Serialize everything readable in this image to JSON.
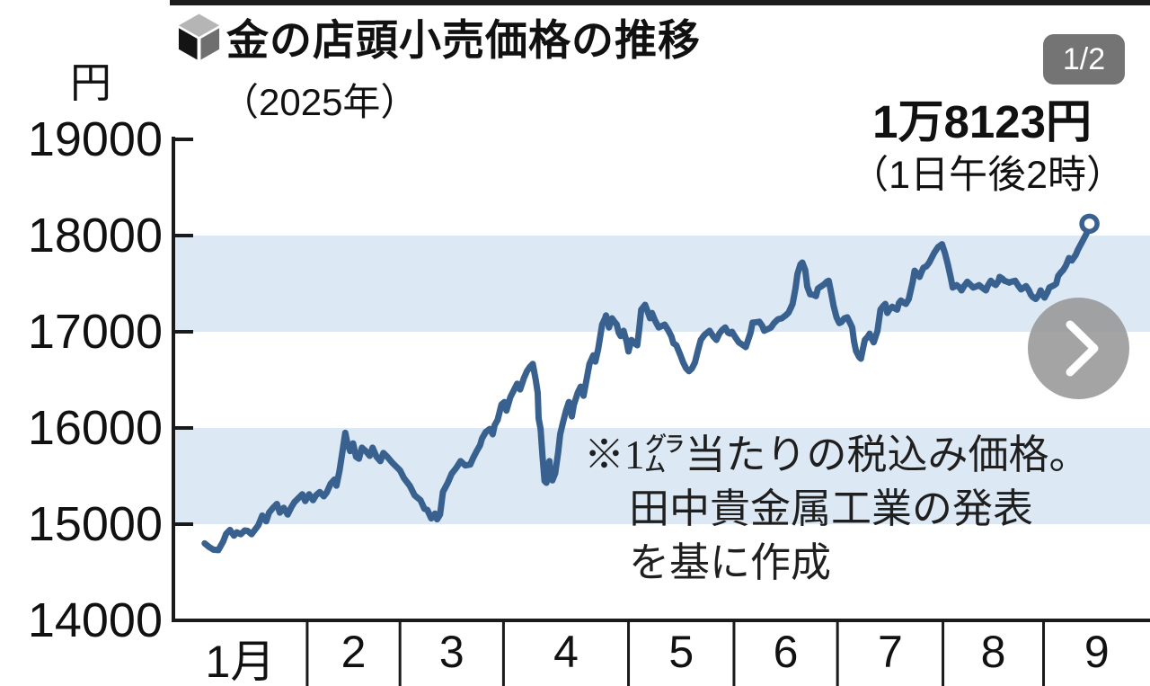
{
  "header": {
    "title": "金の店頭小売価格の推移",
    "subtitle": "（2025年）",
    "pager_badge": "1/2"
  },
  "price_callout": {
    "value": "1万8123円",
    "time": "（1日午後2時）"
  },
  "note": {
    "line1": "※1㌘当たりの税込み価格。",
    "line2": "田中貴金属工業の発表",
    "line3": "を基に作成"
  },
  "icons": {
    "bullet": "cube",
    "next": "chevron-right"
  },
  "colors": {
    "line": "#38618f",
    "band": "#dce8f4",
    "axis": "#1a1a1a",
    "badge_bg": "#616161",
    "button_bg": "#929292"
  },
  "chart_data": {
    "type": "line",
    "title": "金の店頭小売価格の推移（2025年）",
    "ylabel": "円",
    "unit_label": "円",
    "ylim": [
      14000,
      19000
    ],
    "yticks": [
      19000,
      18000,
      17000,
      16000,
      15000,
      14000
    ],
    "bands": [
      [
        17000,
        18000
      ],
      [
        15000,
        16000
      ]
    ],
    "grid": false,
    "x_months": [
      "1月",
      "2",
      "3",
      "4",
      "5",
      "6",
      "7",
      "8",
      "9"
    ],
    "month_boundaries_frac": [
      0,
      0.137,
      0.232,
      0.338,
      0.466,
      0.574,
      0.68,
      0.788,
      0.891,
      1.0
    ],
    "latest": {
      "price_yen": 18123,
      "label": "1万8123円",
      "time_label": "（1日午後2時）"
    },
    "series": [
      {
        "name": "金の店頭小売価格",
        "points": [
          [
            0.032,
            14800
          ],
          [
            0.037,
            14760
          ],
          [
            0.041,
            14735
          ],
          [
            0.046,
            14730
          ],
          [
            0.051,
            14820
          ],
          [
            0.054,
            14900
          ],
          [
            0.058,
            14940
          ],
          [
            0.062,
            14880
          ],
          [
            0.065,
            14915
          ],
          [
            0.069,
            14895
          ],
          [
            0.073,
            14935
          ],
          [
            0.076,
            14930
          ],
          [
            0.08,
            14895
          ],
          [
            0.084,
            14950
          ],
          [
            0.087,
            14990
          ],
          [
            0.091,
            15090
          ],
          [
            0.095,
            15030
          ],
          [
            0.098,
            15120
          ],
          [
            0.102,
            15170
          ],
          [
            0.106,
            15210
          ],
          [
            0.109,
            15120
          ],
          [
            0.113,
            15170
          ],
          [
            0.117,
            15100
          ],
          [
            0.121,
            15180
          ],
          [
            0.124,
            15230
          ],
          [
            0.128,
            15270
          ],
          [
            0.132,
            15310
          ],
          [
            0.135,
            15240
          ],
          [
            0.139,
            15310
          ],
          [
            0.143,
            15250
          ],
          [
            0.146,
            15300
          ],
          [
            0.15,
            15335
          ],
          [
            0.154,
            15290
          ],
          [
            0.157,
            15330
          ],
          [
            0.161,
            15420
          ],
          [
            0.165,
            15465
          ],
          [
            0.167,
            15400
          ],
          [
            0.17,
            15550
          ],
          [
            0.173,
            15750
          ],
          [
            0.176,
            15950
          ],
          [
            0.178,
            15850
          ],
          [
            0.181,
            15760
          ],
          [
            0.184,
            15840
          ],
          [
            0.187,
            15700
          ],
          [
            0.19,
            15680
          ],
          [
            0.193,
            15795
          ],
          [
            0.197,
            15760
          ],
          [
            0.201,
            15710
          ],
          [
            0.204,
            15795
          ],
          [
            0.208,
            15700
          ],
          [
            0.212,
            15655
          ],
          [
            0.215,
            15740
          ],
          [
            0.219,
            15700
          ],
          [
            0.224,
            15640
          ],
          [
            0.227,
            15610
          ],
          [
            0.232,
            15560
          ],
          [
            0.236,
            15480
          ],
          [
            0.242,
            15400
          ],
          [
            0.247,
            15300
          ],
          [
            0.253,
            15250
          ],
          [
            0.257,
            15160
          ],
          [
            0.26,
            15150
          ],
          [
            0.264,
            15060
          ],
          [
            0.268,
            15110
          ],
          [
            0.27,
            15050
          ],
          [
            0.273,
            15100
          ],
          [
            0.276,
            15335
          ],
          [
            0.281,
            15430
          ],
          [
            0.285,
            15525
          ],
          [
            0.29,
            15590
          ],
          [
            0.294,
            15655
          ],
          [
            0.299,
            15610
          ],
          [
            0.304,
            15620
          ],
          [
            0.307,
            15690
          ],
          [
            0.31,
            15750
          ],
          [
            0.314,
            15820
          ],
          [
            0.316,
            15890
          ],
          [
            0.32,
            15960
          ],
          [
            0.324,
            15990
          ],
          [
            0.327,
            15935
          ],
          [
            0.329,
            16030
          ],
          [
            0.332,
            16085
          ],
          [
            0.336,
            16245
          ],
          [
            0.339,
            16270
          ],
          [
            0.341,
            16180
          ],
          [
            0.345,
            16320
          ],
          [
            0.349,
            16400
          ],
          [
            0.352,
            16460
          ],
          [
            0.355,
            16400
          ],
          [
            0.359,
            16520
          ],
          [
            0.362,
            16590
          ],
          [
            0.365,
            16635
          ],
          [
            0.368,
            16665
          ],
          [
            0.371,
            16500
          ],
          [
            0.373,
            16365
          ],
          [
            0.374,
            16100
          ],
          [
            0.376,
            15990
          ],
          [
            0.378,
            15700
          ],
          [
            0.38,
            15450
          ],
          [
            0.382,
            15430
          ],
          [
            0.385,
            15655
          ],
          [
            0.386,
            15550
          ],
          [
            0.388,
            15455
          ],
          [
            0.391,
            15530
          ],
          [
            0.394,
            15750
          ],
          [
            0.396,
            15935
          ],
          [
            0.399,
            16060
          ],
          [
            0.402,
            16180
          ],
          [
            0.405,
            16270
          ],
          [
            0.408,
            16120
          ],
          [
            0.41,
            16240
          ],
          [
            0.414,
            16365
          ],
          [
            0.417,
            16430
          ],
          [
            0.42,
            16335
          ],
          [
            0.423,
            16500
          ],
          [
            0.426,
            16665
          ],
          [
            0.43,
            16755
          ],
          [
            0.432,
            16690
          ],
          [
            0.435,
            16820
          ],
          [
            0.439,
            17075
          ],
          [
            0.442,
            17140
          ],
          [
            0.443,
            17170
          ],
          [
            0.446,
            17045
          ],
          [
            0.449,
            17140
          ],
          [
            0.452,
            17100
          ],
          [
            0.454,
            17075
          ],
          [
            0.456,
            16990
          ],
          [
            0.458,
            16955
          ],
          [
            0.461,
            17010
          ],
          [
            0.464,
            16900
          ],
          [
            0.466,
            16795
          ],
          [
            0.469,
            16915
          ],
          [
            0.472,
            16880
          ],
          [
            0.475,
            16860
          ],
          [
            0.477,
            17030
          ],
          [
            0.479,
            17230
          ],
          [
            0.483,
            17280
          ],
          [
            0.486,
            17200
          ],
          [
            0.488,
            17140
          ],
          [
            0.49,
            17195
          ],
          [
            0.493,
            17120
          ],
          [
            0.497,
            17045
          ],
          [
            0.5,
            17060
          ],
          [
            0.503,
            17075
          ],
          [
            0.507,
            17010
          ],
          [
            0.51,
            16950
          ],
          [
            0.512,
            16880
          ],
          [
            0.515,
            16860
          ],
          [
            0.519,
            16760
          ],
          [
            0.522,
            16680
          ],
          [
            0.525,
            16620
          ],
          [
            0.528,
            16590
          ],
          [
            0.531,
            16620
          ],
          [
            0.534,
            16680
          ],
          [
            0.537,
            16800
          ],
          [
            0.54,
            16915
          ],
          [
            0.544,
            16970
          ],
          [
            0.549,
            17010
          ],
          [
            0.553,
            16950
          ],
          [
            0.556,
            16915
          ],
          [
            0.559,
            16980
          ],
          [
            0.562,
            17020
          ],
          [
            0.565,
            17045
          ],
          [
            0.568,
            16990
          ],
          [
            0.57,
            16980
          ],
          [
            0.572,
            17000
          ],
          [
            0.575,
            16950
          ],
          [
            0.579,
            16890
          ],
          [
            0.582,
            16870
          ],
          [
            0.586,
            16840
          ],
          [
            0.591,
            16990
          ],
          [
            0.593,
            17095
          ],
          [
            0.597,
            17100
          ],
          [
            0.6,
            17105
          ],
          [
            0.603,
            17060
          ],
          [
            0.605,
            17010
          ],
          [
            0.609,
            17030
          ],
          [
            0.612,
            17045
          ],
          [
            0.615,
            17090
          ],
          [
            0.619,
            17130
          ],
          [
            0.623,
            17140
          ],
          [
            0.627,
            17170
          ],
          [
            0.63,
            17200
          ],
          [
            0.634,
            17290
          ],
          [
            0.637,
            17450
          ],
          [
            0.639,
            17600
          ],
          [
            0.642,
            17700
          ],
          [
            0.644,
            17720
          ],
          [
            0.647,
            17640
          ],
          [
            0.649,
            17470
          ],
          [
            0.652,
            17390
          ],
          [
            0.655,
            17385
          ],
          [
            0.658,
            17370
          ],
          [
            0.66,
            17450
          ],
          [
            0.663,
            17470
          ],
          [
            0.666,
            17490
          ],
          [
            0.669,
            17520
          ],
          [
            0.671,
            17530
          ],
          [
            0.673,
            17430
          ],
          [
            0.676,
            17270
          ],
          [
            0.679,
            17150
          ],
          [
            0.682,
            17090
          ],
          [
            0.684,
            17100
          ],
          [
            0.687,
            17140
          ],
          [
            0.69,
            17150
          ],
          [
            0.693,
            17090
          ],
          [
            0.695,
            17045
          ],
          [
            0.697,
            16900
          ],
          [
            0.699,
            16800
          ],
          [
            0.702,
            16740
          ],
          [
            0.704,
            16720
          ],
          [
            0.706,
            16820
          ],
          [
            0.708,
            16915
          ],
          [
            0.711,
            16950
          ],
          [
            0.713,
            16980
          ],
          [
            0.715,
            16930
          ],
          [
            0.717,
            16890
          ],
          [
            0.719,
            16950
          ],
          [
            0.721,
            17010
          ],
          [
            0.724,
            17230
          ],
          [
            0.727,
            17270
          ],
          [
            0.729,
            17290
          ],
          [
            0.731,
            17195
          ],
          [
            0.733,
            17230
          ],
          [
            0.736,
            17260
          ],
          [
            0.739,
            17240
          ],
          [
            0.741,
            17230
          ],
          [
            0.743,
            17300
          ],
          [
            0.745,
            17325
          ],
          [
            0.748,
            17300
          ],
          [
            0.75,
            17290
          ],
          [
            0.753,
            17340
          ],
          [
            0.754,
            17385
          ],
          [
            0.757,
            17520
          ],
          [
            0.759,
            17635
          ],
          [
            0.762,
            17600
          ],
          [
            0.764,
            17570
          ],
          [
            0.766,
            17620
          ],
          [
            0.768,
            17665
          ],
          [
            0.771,
            17680
          ],
          [
            0.774,
            17720
          ],
          [
            0.776,
            17760
          ],
          [
            0.779,
            17820
          ],
          [
            0.783,
            17880
          ],
          [
            0.787,
            17910
          ],
          [
            0.79,
            17820
          ],
          [
            0.793,
            17700
          ],
          [
            0.796,
            17560
          ],
          [
            0.798,
            17460
          ],
          [
            0.8,
            17470
          ],
          [
            0.802,
            17485
          ],
          [
            0.805,
            17460
          ],
          [
            0.807,
            17430
          ],
          [
            0.81,
            17480
          ],
          [
            0.813,
            17520
          ],
          [
            0.816,
            17490
          ],
          [
            0.819,
            17460
          ],
          [
            0.822,
            17470
          ],
          [
            0.825,
            17485
          ],
          [
            0.828,
            17460
          ],
          [
            0.832,
            17430
          ],
          [
            0.834,
            17480
          ],
          [
            0.837,
            17530
          ],
          [
            0.84,
            17500
          ],
          [
            0.842,
            17485
          ],
          [
            0.845,
            17530
          ],
          [
            0.846,
            17570
          ],
          [
            0.849,
            17550
          ],
          [
            0.851,
            17530
          ],
          [
            0.854,
            17520
          ],
          [
            0.856,
            17510
          ],
          [
            0.858,
            17520
          ],
          [
            0.862,
            17530
          ],
          [
            0.865,
            17480
          ],
          [
            0.868,
            17440
          ],
          [
            0.871,
            17460
          ],
          [
            0.873,
            17475
          ],
          [
            0.876,
            17430
          ],
          [
            0.878,
            17385
          ],
          [
            0.88,
            17360
          ],
          [
            0.883,
            17340
          ],
          [
            0.886,
            17380
          ],
          [
            0.888,
            17430
          ],
          [
            0.89,
            17390
          ],
          [
            0.892,
            17355
          ],
          [
            0.895,
            17410
          ],
          [
            0.897,
            17460
          ],
          [
            0.9,
            17475
          ],
          [
            0.902,
            17485
          ],
          [
            0.904,
            17500
          ],
          [
            0.906,
            17580
          ],
          [
            0.909,
            17620
          ],
          [
            0.911,
            17640
          ],
          [
            0.914,
            17690
          ],
          [
            0.917,
            17766
          ],
          [
            0.92,
            17740
          ],
          [
            0.924,
            17800
          ],
          [
            0.926,
            17850
          ],
          [
            0.931,
            17944
          ],
          [
            0.935,
            18020
          ],
          [
            0.938,
            18123
          ]
        ]
      }
    ]
  }
}
